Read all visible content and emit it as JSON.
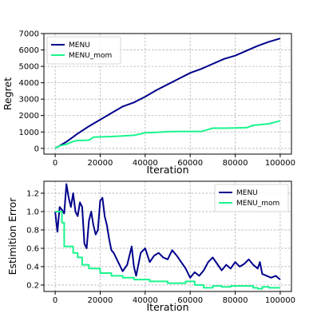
{
  "chart_data": [
    {
      "type": "line",
      "xlabel": "Iteration",
      "ylabel": "Regret",
      "xlim": [
        -5000,
        105000
      ],
      "ylim": [
        -350,
        7000
      ],
      "xticks": [
        0,
        20000,
        40000,
        60000,
        80000,
        100000
      ],
      "yticks": [
        0,
        1000,
        2000,
        3000,
        4000,
        5000,
        6000,
        7000
      ],
      "grid": true,
      "legend_position": "top-left",
      "series": [
        {
          "name": "MENU",
          "color": "#00008b",
          "x": [
            0,
            5000,
            10000,
            15000,
            20000,
            25000,
            30000,
            35000,
            40000,
            45000,
            50000,
            55000,
            60000,
            65000,
            70000,
            75000,
            80000,
            85000,
            90000,
            95000,
            100000
          ],
          "y": [
            0,
            400,
            900,
            1350,
            1750,
            2150,
            2550,
            2800,
            3150,
            3550,
            3900,
            4250,
            4600,
            4850,
            5150,
            5450,
            5650,
            5950,
            6250,
            6500,
            6700
          ]
        },
        {
          "name": "MENU_mom",
          "color": "#19f58c",
          "x": [
            0,
            2000,
            5000,
            8000,
            10000,
            12000,
            15000,
            17000,
            20000,
            25000,
            30000,
            35000,
            38000,
            40000,
            45000,
            48000,
            50000,
            55000,
            60000,
            65000,
            68000,
            70000,
            75000,
            80000,
            85000,
            88000,
            90000,
            95000,
            100000
          ],
          "y": [
            0,
            150,
            250,
            420,
            480,
            480,
            500,
            680,
            700,
            720,
            760,
            800,
            880,
            950,
            980,
            1000,
            1020,
            1030,
            1030,
            1030,
            1150,
            1230,
            1230,
            1240,
            1260,
            1400,
            1430,
            1500,
            1680
          ]
        }
      ]
    },
    {
      "type": "line",
      "xlabel": "Iteration",
      "ylabel": "Estimition Error",
      "xlim": [
        -5000,
        105000
      ],
      "ylim": [
        0.13,
        1.33
      ],
      "xticks": [
        0,
        20000,
        40000,
        60000,
        80000,
        100000
      ],
      "yticks": [
        0.2,
        0.4,
        0.6,
        0.8,
        1.0,
        1.2
      ],
      "grid": true,
      "legend_position": "top-right",
      "series": [
        {
          "name": "MENU",
          "color": "#00008b",
          "x": [
            0,
            1000,
            2000,
            3000,
            4000,
            5000,
            6000,
            7000,
            8000,
            9000,
            10000,
            11000,
            12000,
            13000,
            14000,
            15000,
            16000,
            17000,
            18000,
            19000,
            20000,
            21000,
            22000,
            23000,
            24000,
            25000,
            26000,
            27000,
            28000,
            29000,
            30000,
            32000,
            34000,
            35000,
            36000,
            38000,
            40000,
            42000,
            44000,
            46000,
            48000,
            50000,
            52000,
            54000,
            56000,
            58000,
            60000,
            62000,
            64000,
            66000,
            68000,
            70000,
            72000,
            74000,
            76000,
            78000,
            80000,
            82000,
            84000,
            86000,
            88000,
            90000,
            91000,
            92000,
            94000,
            96000,
            98000,
            100000
          ],
          "y": [
            1.0,
            0.78,
            1.05,
            1.02,
            0.98,
            1.3,
            1.15,
            1.05,
            1.2,
            1.0,
            0.95,
            1.1,
            1.05,
            0.65,
            0.6,
            0.9,
            1.0,
            0.85,
            0.75,
            0.8,
            1.12,
            1.15,
            0.95,
            0.85,
            0.7,
            0.58,
            0.55,
            0.5,
            0.45,
            0.4,
            0.35,
            0.42,
            0.62,
            0.4,
            0.3,
            0.55,
            0.6,
            0.45,
            0.52,
            0.55,
            0.5,
            0.48,
            0.58,
            0.52,
            0.45,
            0.38,
            0.28,
            0.34,
            0.3,
            0.36,
            0.45,
            0.5,
            0.43,
            0.36,
            0.42,
            0.38,
            0.45,
            0.4,
            0.43,
            0.48,
            0.42,
            0.38,
            0.45,
            0.32,
            0.3,
            0.28,
            0.3,
            0.26
          ]
        },
        {
          "name": "MENU_mom",
          "color": "#19f58c",
          "x": [
            0,
            3000,
            3000,
            4000,
            4000,
            8000,
            8000,
            10000,
            10000,
            12000,
            12000,
            15000,
            15000,
            20000,
            20000,
            25000,
            25000,
            30000,
            30000,
            35000,
            35000,
            42000,
            42000,
            50000,
            50000,
            58000,
            58000,
            62000,
            62000,
            66000,
            66000,
            70000,
            70000,
            74000,
            74000,
            78000,
            78000,
            88000,
            88000,
            90000,
            90000,
            92000,
            92000,
            95000,
            95000,
            100000
          ],
          "y": [
            1.0,
            1.0,
            0.88,
            0.88,
            0.62,
            0.62,
            0.55,
            0.55,
            0.5,
            0.5,
            0.42,
            0.42,
            0.38,
            0.38,
            0.33,
            0.33,
            0.3,
            0.3,
            0.28,
            0.28,
            0.26,
            0.26,
            0.24,
            0.24,
            0.22,
            0.22,
            0.24,
            0.24,
            0.2,
            0.2,
            0.17,
            0.17,
            0.19,
            0.19,
            0.18,
            0.18,
            0.19,
            0.19,
            0.17,
            0.17,
            0.16,
            0.16,
            0.18,
            0.18,
            0.17,
            0.17
          ]
        }
      ]
    }
  ]
}
